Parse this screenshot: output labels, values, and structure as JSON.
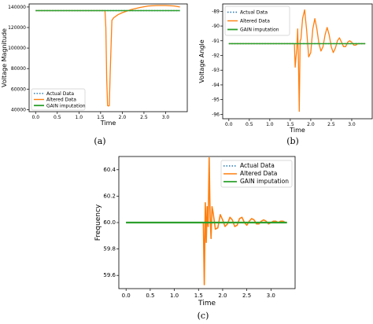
{
  "colors": {
    "actual": "#1f77b4",
    "altered": "#ff7f0e",
    "gain": "#2ca02c",
    "axis": "#000000",
    "legend_border": "#cccccc"
  },
  "chart_data": [
    {
      "type": "line",
      "caption": "(a)",
      "xlabel": "Time",
      "ylabel": "Voltage Magnitude",
      "xlim": [
        -0.15,
        3.5
      ],
      "ylim": [
        38000,
        143000
      ],
      "xticks": [
        0.0,
        0.5,
        1.0,
        1.5,
        2.0,
        2.5,
        3.0
      ],
      "xtick_labels": [
        "0.0",
        "0.5",
        "1.0",
        "1.5",
        "2.0",
        "2.5",
        "3.0"
      ],
      "yticks": [
        40000,
        60000,
        80000,
        100000,
        120000,
        140000
      ],
      "ytick_labels": [
        "40000",
        "60000",
        "80000",
        "100000",
        "120000",
        "140000"
      ],
      "legend_position": "lower-left",
      "grid": false,
      "series": [
        {
          "name": "Actual Data",
          "style": "dotted",
          "x": [
            0.0,
            3.33
          ],
          "y": [
            136500,
            136500
          ]
        },
        {
          "name": "Altered Data",
          "style": "solid",
          "x": [
            0.0,
            1.6,
            1.62,
            1.64,
            1.66,
            1.68,
            1.7,
            1.72,
            1.76,
            1.8,
            1.9,
            2.0,
            2.2,
            2.4,
            2.6,
            2.8,
            3.0,
            3.2,
            3.33
          ],
          "y": [
            136500,
            136500,
            120000,
            70000,
            44000,
            43500,
            44000,
            75000,
            127000,
            129500,
            132500,
            134500,
            137500,
            139500,
            141000,
            141500,
            141500,
            141000,
            140000
          ]
        },
        {
          "name": "GAIN imputation",
          "style": "solid",
          "x": [
            0.0,
            3.33
          ],
          "y": [
            136500,
            136500
          ]
        }
      ]
    },
    {
      "type": "line",
      "caption": "(b)",
      "xlabel": "Time",
      "ylabel": "Voltage Angle",
      "xlim": [
        -0.15,
        3.5
      ],
      "ylim": [
        -96.3,
        -88.5
      ],
      "xticks": [
        0.0,
        0.5,
        1.0,
        1.5,
        2.0,
        2.5,
        3.0
      ],
      "xtick_labels": [
        "0.0",
        "0.5",
        "1.0",
        "1.5",
        "2.0",
        "2.5",
        "3.0"
      ],
      "yticks": [
        -96,
        -95,
        -94,
        -93,
        -92,
        -91,
        -90,
        -89
      ],
      "ytick_labels": [
        "-96",
        "-95",
        "-94",
        "-93",
        "-92",
        "-91",
        "-90",
        "-89"
      ],
      "legend_position": "top-left",
      "grid": false,
      "series": [
        {
          "name": "Actual Data",
          "style": "dotted",
          "x": [
            0.0,
            3.33
          ],
          "y": [
            -91.2,
            -91.2
          ]
        },
        {
          "name": "Altered Data",
          "style": "solid",
          "x": [
            0.0,
            1.6,
            1.62,
            1.64,
            1.66,
            1.68,
            1.7,
            1.72,
            1.74,
            1.76,
            1.8,
            1.85,
            1.9,
            1.95,
            2.0,
            2.05,
            2.1,
            2.15,
            2.2,
            2.25,
            2.3,
            2.35,
            2.4,
            2.45,
            2.5,
            2.55,
            2.6,
            2.65,
            2.7,
            2.75,
            2.8,
            2.85,
            2.9,
            2.95,
            3.0,
            3.05,
            3.1,
            3.15,
            3.2,
            3.25,
            3.3,
            3.33
          ],
          "y": [
            -91.2,
            -91.2,
            -92.8,
            -92.1,
            -91.5,
            -90.2,
            -92.5,
            -95.8,
            -91.0,
            -90.9,
            -89.5,
            -88.9,
            -90.3,
            -92.1,
            -91.8,
            -90.2,
            -89.5,
            -90.2,
            -91.2,
            -91.7,
            -91.4,
            -90.6,
            -90.1,
            -90.6,
            -91.4,
            -91.8,
            -91.5,
            -91.0,
            -90.8,
            -91.1,
            -91.4,
            -91.4,
            -91.1,
            -91.0,
            -91.1,
            -91.3,
            -91.3,
            -91.2,
            -91.2,
            -91.2,
            -91.2,
            -91.2
          ]
        },
        {
          "name": "GAIN imputation",
          "style": "solid",
          "x": [
            0.0,
            3.33
          ],
          "y": [
            -91.2,
            -91.2
          ]
        }
      ]
    },
    {
      "type": "line",
      "caption": "(c)",
      "xlabel": "Time",
      "ylabel": "Frequency",
      "xlim": [
        -0.15,
        3.5
      ],
      "ylim": [
        59.5,
        60.5
      ],
      "xticks": [
        0.0,
        0.5,
        1.0,
        1.5,
        2.0,
        2.5,
        3.0
      ],
      "xtick_labels": [
        "0.0",
        "0.5",
        "1.0",
        "1.5",
        "2.0",
        "2.5",
        "3.0"
      ],
      "yticks": [
        59.6,
        59.8,
        60.0,
        60.2,
        60.4
      ],
      "ytick_labels": [
        "59.6",
        "59.8",
        "60.0",
        "60.2",
        "60.4"
      ],
      "legend_position": "top-right",
      "grid": false,
      "series": [
        {
          "name": "Actual Data",
          "style": "dotted",
          "x": [
            0.0,
            3.33
          ],
          "y": [
            60.0,
            60.0
          ]
        },
        {
          "name": "Altered Data",
          "style": "solid",
          "x": [
            0.0,
            1.6,
            1.62,
            1.64,
            1.66,
            1.68,
            1.7,
            1.72,
            1.74,
            1.76,
            1.78,
            1.8,
            1.85,
            1.9,
            1.95,
            2.0,
            2.05,
            2.1,
            2.15,
            2.2,
            2.25,
            2.3,
            2.35,
            2.4,
            2.45,
            2.5,
            2.55,
            2.6,
            2.65,
            2.7,
            2.75,
            2.8,
            2.85,
            2.9,
            2.95,
            3.0,
            3.05,
            3.1,
            3.15,
            3.2,
            3.25,
            3.3,
            3.33
          ],
          "y": [
            60.0,
            60.0,
            59.53,
            60.15,
            59.85,
            60.12,
            59.97,
            60.49,
            60.05,
            59.88,
            60.12,
            60.08,
            59.95,
            59.96,
            60.06,
            60.02,
            59.97,
            59.99,
            60.04,
            60.02,
            59.97,
            59.98,
            60.03,
            60.04,
            60.0,
            59.98,
            60.01,
            60.03,
            60.02,
            59.99,
            59.99,
            60.01,
            60.02,
            60.01,
            59.99,
            60.0,
            60.01,
            60.01,
            60.0,
            60.01,
            60.01,
            60.0,
            60.0
          ]
        },
        {
          "name": "GAIN imputation",
          "style": "solid",
          "x": [
            0.0,
            3.33
          ],
          "y": [
            60.0,
            60.0
          ]
        }
      ]
    }
  ]
}
